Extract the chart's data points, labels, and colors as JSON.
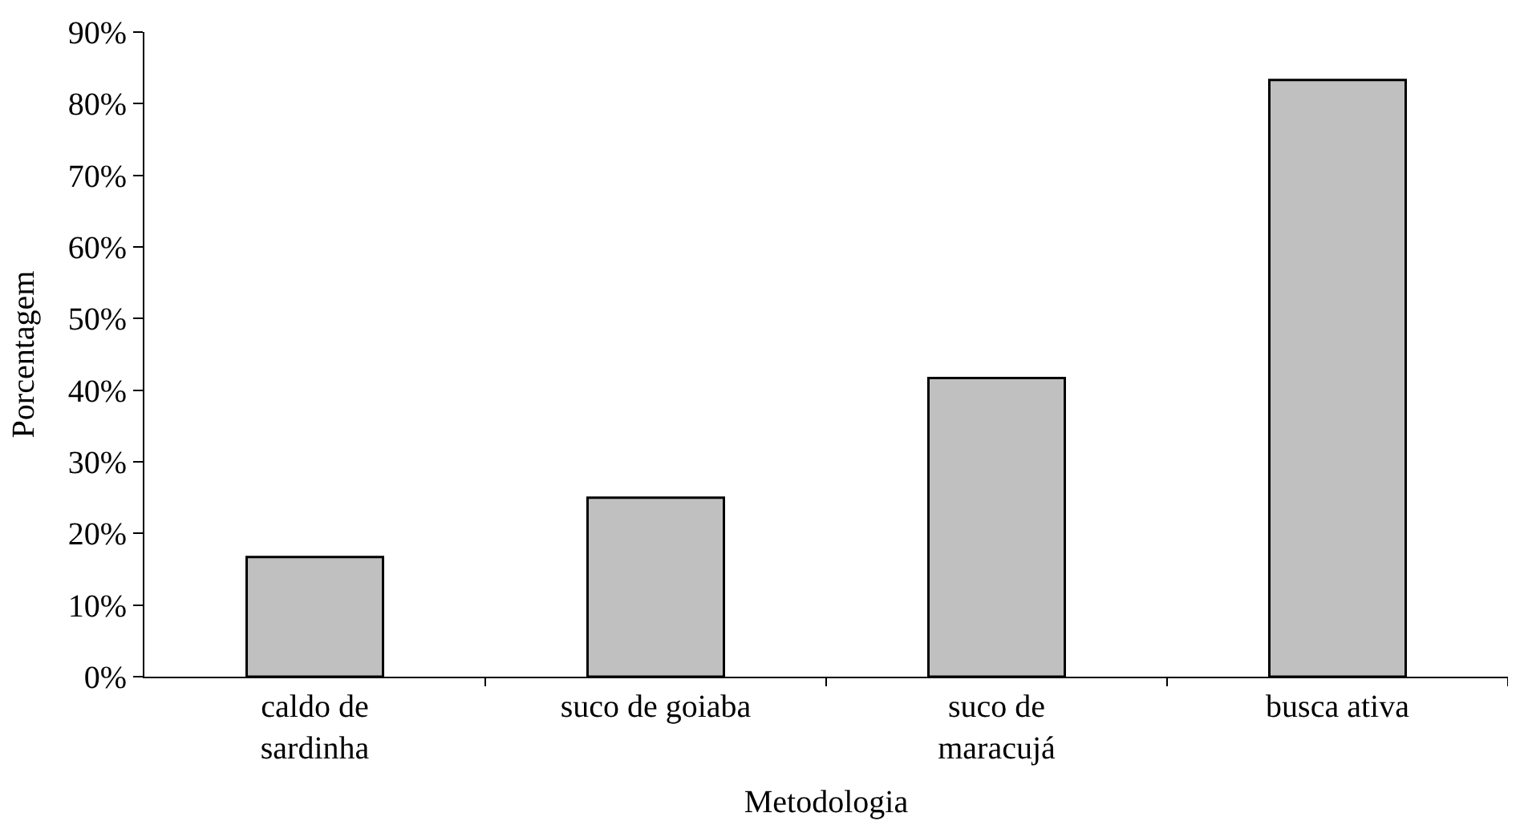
{
  "chart_data": {
    "type": "bar",
    "xlabel": "Metodologia",
    "ylabel": "Porcentagem",
    "categories": [
      "caldo de\nsardinha",
      "suco de goiaba",
      "suco de\nmaracujá",
      "busca ativa"
    ],
    "values": [
      16.7,
      25,
      41.7,
      83.3
    ],
    "color": "#c0c0c0",
    "ylim": [
      0,
      90
    ],
    "yticks": [
      {
        "value": 0,
        "label": "0%"
      },
      {
        "value": 10,
        "label": "10%"
      },
      {
        "value": 20,
        "label": "20%"
      },
      {
        "value": 30,
        "label": "30%"
      },
      {
        "value": 40,
        "label": "40%"
      },
      {
        "value": 50,
        "label": "50%"
      },
      {
        "value": 60,
        "label": "60%"
      },
      {
        "value": 70,
        "label": "70%"
      },
      {
        "value": 80,
        "label": "80%"
      },
      {
        "value": 90,
        "label": "90%"
      }
    ],
    "legend": false
  }
}
